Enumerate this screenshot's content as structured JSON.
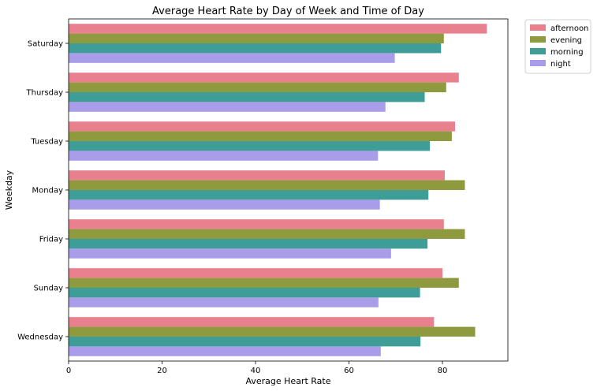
{
  "chart_data": {
    "type": "bar",
    "orientation": "horizontal",
    "title": "Average Heart Rate by Day of Week and Time of Day",
    "xlabel": "Average Heart Rate",
    "ylabel": "Weekday",
    "xlim": [
      0,
      94
    ],
    "xticks": [
      0,
      20,
      40,
      60,
      80
    ],
    "categories": [
      "Saturday",
      "Thursday",
      "Tuesday",
      "Monday",
      "Friday",
      "Sunday",
      "Wednesday"
    ],
    "series": [
      {
        "name": "afternoon",
        "color": "#e8808e",
        "values": [
          89.5,
          83.5,
          82.7,
          80.5,
          80.3,
          80.0,
          78.2
        ]
      },
      {
        "name": "evening",
        "color": "#8f9a3e",
        "values": [
          80.3,
          80.8,
          82.0,
          84.8,
          84.8,
          83.5,
          87.0
        ]
      },
      {
        "name": "morning",
        "color": "#3f9d98",
        "values": [
          79.7,
          76.2,
          77.3,
          77.0,
          76.8,
          75.2,
          75.3
        ]
      },
      {
        "name": "night",
        "color": "#a99ce8",
        "values": [
          69.8,
          67.8,
          66.2,
          66.6,
          69.0,
          66.3,
          66.8
        ]
      }
    ],
    "legend": "outside-top-right",
    "grid": false
  }
}
